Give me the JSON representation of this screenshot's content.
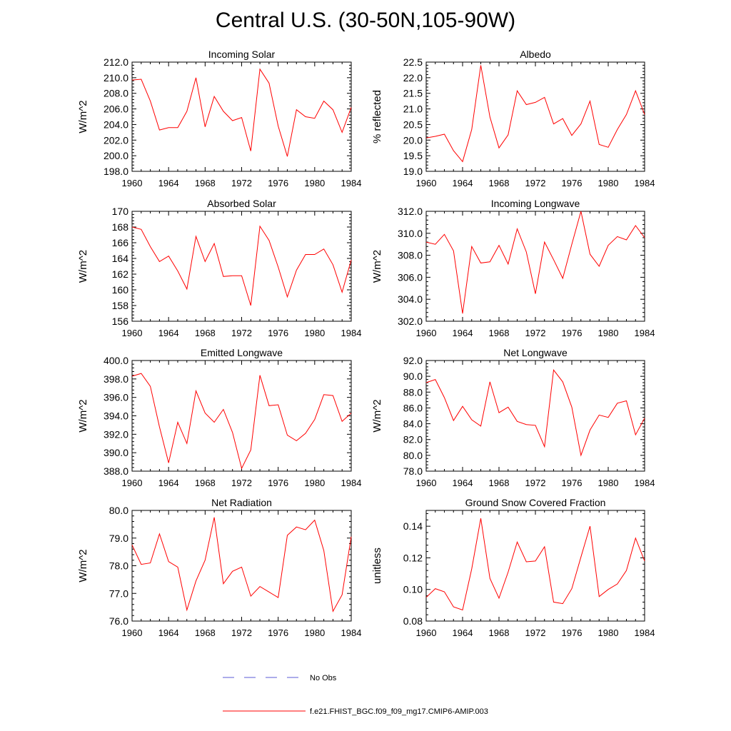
{
  "figure": {
    "title": "Central U.S. (30-50N,105-90W)"
  },
  "legend": {
    "items": [
      {
        "label": "No Obs",
        "style": "dashed",
        "color": "#5b5bd6"
      },
      {
        "label": "f.e21.FHIST_BGC.f09_f09_mg17.CMIP6-AMIP.003",
        "style": "solid",
        "color": "#ff0000"
      }
    ]
  },
  "chart_data": [
    {
      "type": "line",
      "title": "Incoming Solar",
      "ylabel": "W/m^2",
      "xlim": [
        1960,
        1984
      ],
      "ylim": [
        198,
        212
      ],
      "xticks": [
        "1960",
        "1964",
        "1968",
        "1972",
        "1976",
        "1980",
        "1984"
      ],
      "yticks": [
        "198.0",
        "200.0",
        "202.0",
        "204.0",
        "206.0",
        "208.0",
        "210.0",
        "212.0"
      ],
      "x": [
        1960,
        1961,
        1962,
        1963,
        1964,
        1965,
        1966,
        1967,
        1968,
        1969,
        1970,
        1971,
        1972,
        1973,
        1974,
        1975,
        1976,
        1977,
        1978,
        1979,
        1980,
        1981,
        1982,
        1983,
        1984
      ],
      "values": [
        209.7,
        209.8,
        207.0,
        203.3,
        203.6,
        203.6,
        205.7,
        210.0,
        203.7,
        207.6,
        205.7,
        204.5,
        204.9,
        200.6,
        211.1,
        209.3,
        203.8,
        199.9,
        205.9,
        205.0,
        204.8,
        207.0,
        205.9,
        203.0,
        206.2
      ],
      "color": "#ff0000"
    },
    {
      "type": "line",
      "title": "Albedo",
      "ylabel": "% reflected",
      "xlim": [
        1960,
        1984
      ],
      "ylim": [
        19,
        22.5
      ],
      "xticks": [
        "1960",
        "1964",
        "1968",
        "1972",
        "1976",
        "1980",
        "1984"
      ],
      "yticks": [
        "19.0",
        "19.5",
        "20.0",
        "20.5",
        "21.0",
        "21.5",
        "22.0",
        "22.5"
      ],
      "x": [
        1960,
        1961,
        1962,
        1963,
        1964,
        1965,
        1966,
        1967,
        1968,
        1969,
        1970,
        1971,
        1972,
        1973,
        1974,
        1975,
        1976,
        1977,
        1978,
        1979,
        1980,
        1981,
        1982,
        1983,
        1984
      ],
      "values": [
        20.07,
        20.12,
        20.19,
        19.66,
        19.31,
        20.34,
        22.4,
        20.74,
        19.75,
        20.17,
        21.58,
        21.14,
        21.21,
        21.37,
        20.52,
        20.69,
        20.15,
        20.52,
        21.25,
        19.86,
        19.77,
        20.34,
        20.82,
        21.58,
        20.82
      ],
      "color": "#ff0000"
    },
    {
      "type": "line",
      "title": "Absorbed Solar",
      "ylabel": "W/m^2",
      "xlim": [
        1960,
        1984
      ],
      "ylim": [
        156,
        170
      ],
      "xticks": [
        "1960",
        "1964",
        "1968",
        "1972",
        "1976",
        "1980",
        "1984"
      ],
      "yticks": [
        "156",
        "158",
        "160",
        "162",
        "164",
        "166",
        "168",
        "170"
      ],
      "x": [
        1960,
        1961,
        1962,
        1963,
        1964,
        1965,
        1966,
        1967,
        1968,
        1969,
        1970,
        1971,
        1972,
        1973,
        1974,
        1975,
        1976,
        1977,
        1978,
        1979,
        1980,
        1981,
        1982,
        1983,
        1984
      ],
      "values": [
        168.0,
        167.7,
        165.5,
        163.6,
        164.3,
        162.4,
        160.1,
        166.8,
        163.6,
        165.9,
        161.7,
        161.8,
        161.8,
        158.0,
        168.1,
        166.3,
        162.9,
        159.1,
        162.5,
        164.5,
        164.5,
        165.2,
        163.2,
        159.7,
        163.8
      ],
      "color": "#ff0000"
    },
    {
      "type": "line",
      "title": "Incoming Longwave",
      "ylabel": "W/m^2",
      "xlim": [
        1960,
        1984
      ],
      "ylim": [
        302,
        312
      ],
      "xticks": [
        "1960",
        "1964",
        "1968",
        "1972",
        "1976",
        "1980",
        "1984"
      ],
      "yticks": [
        "302.0",
        "304.0",
        "306.0",
        "308.0",
        "310.0",
        "312.0"
      ],
      "x": [
        1960,
        1961,
        1962,
        1963,
        1964,
        1965,
        1966,
        1967,
        1968,
        1969,
        1970,
        1971,
        1972,
        1973,
        1974,
        1975,
        1976,
        1977,
        1978,
        1979,
        1980,
        1981,
        1982,
        1983,
        1984
      ],
      "values": [
        309.2,
        309.0,
        309.9,
        308.4,
        302.7,
        308.8,
        307.3,
        307.4,
        308.9,
        307.2,
        310.4,
        308.3,
        304.5,
        309.2,
        307.6,
        305.9,
        309.0,
        312.0,
        308.1,
        307.0,
        308.9,
        309.7,
        309.4,
        310.7,
        309.6
      ],
      "color": "#ff0000"
    },
    {
      "type": "line",
      "title": "Emitted Longwave",
      "ylabel": "W/m^2",
      "xlim": [
        1960,
        1984
      ],
      "ylim": [
        388,
        400
      ],
      "xticks": [
        "1960",
        "1964",
        "1968",
        "1972",
        "1976",
        "1980",
        "1984"
      ],
      "yticks": [
        "388.0",
        "390.0",
        "392.0",
        "394.0",
        "396.0",
        "398.0",
        "400.0"
      ],
      "x": [
        1960,
        1961,
        1962,
        1963,
        1964,
        1965,
        1966,
        1967,
        1968,
        1969,
        1970,
        1971,
        1972,
        1973,
        1974,
        1975,
        1976,
        1977,
        1978,
        1979,
        1980,
        1981,
        1982,
        1983,
        1984
      ],
      "values": [
        398.3,
        398.6,
        397.2,
        392.8,
        388.9,
        393.3,
        391.0,
        396.7,
        394.3,
        393.3,
        394.7,
        392.2,
        388.3,
        390.3,
        398.4,
        395.1,
        395.2,
        391.9,
        391.3,
        392.1,
        393.6,
        396.3,
        396.2,
        393.4,
        394.3
      ],
      "color": "#ff0000"
    },
    {
      "type": "line",
      "title": "Net Longwave",
      "ylabel": "W/m^2",
      "xlim": [
        1960,
        1984
      ],
      "ylim": [
        78,
        92
      ],
      "xticks": [
        "1960",
        "1964",
        "1968",
        "1972",
        "1976",
        "1980",
        "1984"
      ],
      "yticks": [
        "78.0",
        "80.0",
        "82.0",
        "84.0",
        "86.0",
        "88.0",
        "90.0",
        "92.0"
      ],
      "x": [
        1960,
        1961,
        1962,
        1963,
        1964,
        1965,
        1966,
        1967,
        1968,
        1969,
        1970,
        1971,
        1972,
        1973,
        1974,
        1975,
        1976,
        1977,
        1978,
        1979,
        1980,
        1981,
        1982,
        1983,
        1984
      ],
      "values": [
        89.2,
        89.6,
        87.3,
        84.4,
        86.2,
        84.5,
        83.7,
        89.3,
        85.4,
        86.1,
        84.3,
        83.9,
        83.8,
        81.1,
        90.8,
        89.3,
        86.1,
        80.0,
        83.2,
        85.1,
        84.8,
        86.6,
        86.9,
        82.6,
        84.7
      ],
      "color": "#ff0000"
    },
    {
      "type": "line",
      "title": "Net Radiation",
      "ylabel": "W/m^2",
      "xlim": [
        1960,
        1984
      ],
      "ylim": [
        76,
        80
      ],
      "xticks": [
        "1960",
        "1964",
        "1968",
        "1972",
        "1976",
        "1980",
        "1984"
      ],
      "yticks": [
        "76.0",
        "77.0",
        "78.0",
        "79.0",
        "80.0"
      ],
      "x": [
        1960,
        1961,
        1962,
        1963,
        1964,
        1965,
        1966,
        1967,
        1968,
        1969,
        1970,
        1971,
        1972,
        1973,
        1974,
        1975,
        1976,
        1977,
        1978,
        1979,
        1980,
        1981,
        1982,
        1983,
        1984
      ],
      "values": [
        78.75,
        78.05,
        78.1,
        79.15,
        78.15,
        77.95,
        76.4,
        77.45,
        78.2,
        79.75,
        77.35,
        77.8,
        77.95,
        76.9,
        77.25,
        77.05,
        76.85,
        79.1,
        79.4,
        79.3,
        79.65,
        78.55,
        76.35,
        76.95,
        79.05
      ],
      "color": "#ff0000"
    },
    {
      "type": "line",
      "title": "Ground Snow Covered Fraction",
      "ylabel": "unitless",
      "xlim": [
        1960,
        1984
      ],
      "ylim": [
        0.08,
        0.15
      ],
      "xticks": [
        "1960",
        "1964",
        "1968",
        "1972",
        "1976",
        "1980",
        "1984"
      ],
      "yticks": [
        "0.08",
        "0.10",
        "0.12",
        "0.14"
      ],
      "x": [
        1960,
        1961,
        1962,
        1963,
        1964,
        1965,
        1966,
        1967,
        1968,
        1969,
        1970,
        1971,
        1972,
        1973,
        1974,
        1975,
        1976,
        1977,
        1978,
        1979,
        1980,
        1981,
        1982,
        1983,
        1984
      ],
      "values": [
        0.095,
        0.1005,
        0.0985,
        0.089,
        0.087,
        0.113,
        0.145,
        0.107,
        0.0945,
        0.111,
        0.13,
        0.1175,
        0.118,
        0.127,
        0.092,
        0.091,
        0.1005,
        0.1205,
        0.14,
        0.0955,
        0.1,
        0.1035,
        0.112,
        0.1325,
        0.118
      ],
      "color": "#ff0000"
    }
  ]
}
